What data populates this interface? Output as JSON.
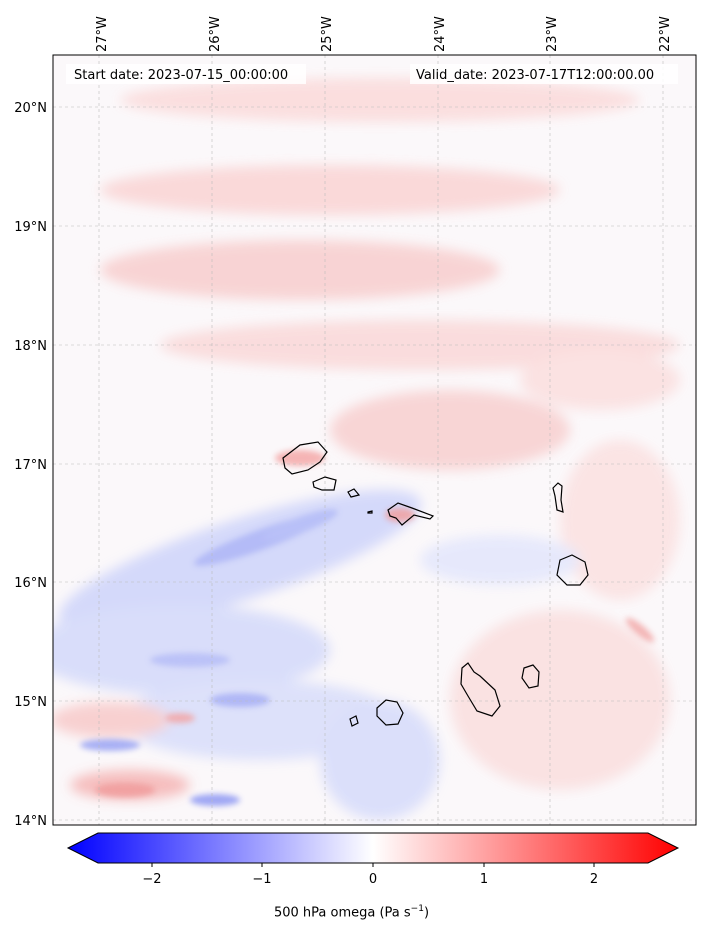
{
  "header": {
    "start_date": "Start date: 2023-07-15_00:00:00",
    "valid_date": "Valid_date: 2023-07-17T12:00:00.00"
  },
  "lon_labels": [
    "27°W",
    "26°W",
    "25°W",
    "24°W",
    "23°W",
    "22°W"
  ],
  "lat_labels": [
    "20°N",
    "19°N",
    "18°N",
    "17°N",
    "16°N",
    "15°N",
    "14°N"
  ],
  "colorbar": {
    "ticks": [
      "−2",
      "−1",
      "0",
      "1",
      "2"
    ],
    "label": "500 hPa omega (Pa s",
    "label_sup": "−1",
    "label_end": ")",
    "colors": {
      "min": "#0000ff",
      "mid": "#ffffff",
      "max": "#ff0000"
    }
  },
  "fields": {
    "coastline_color": "#000000",
    "gridline_color": "#bbbbbb"
  }
}
